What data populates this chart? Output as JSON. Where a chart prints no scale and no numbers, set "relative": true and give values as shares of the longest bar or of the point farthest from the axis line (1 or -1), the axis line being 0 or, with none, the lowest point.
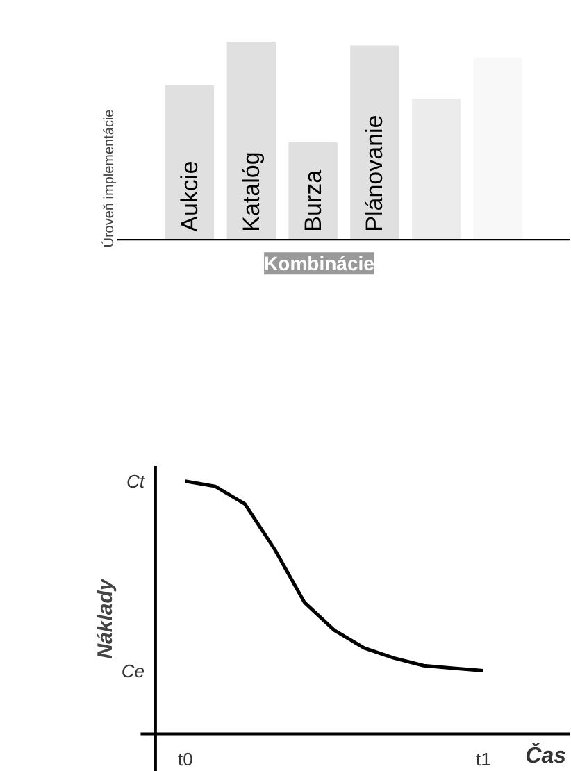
{
  "chart_data": [
    {
      "type": "bar",
      "relative": true,
      "ylabel": "Úroveň implementácie",
      "categories": [
        "Aukcie",
        "Katalóg",
        "Burza",
        "Plánovanie",
        null,
        null
      ],
      "values": [
        0.78,
        1,
        0.49,
        0.98,
        0.71,
        0.92
      ],
      "colors": [
        "#e0e0e0",
        "#e0e0e0",
        "#e0e0e0",
        "#e0e0e0",
        "#ececec",
        "#f8f8f8"
      ],
      "annotations": [
        "Kombinácie"
      ]
    },
    {
      "type": "line",
      "relative": true,
      "xlabel": "Čas",
      "ylabel": "Náklady",
      "categories": [
        null,
        null,
        null,
        null,
        null,
        null,
        null,
        null,
        null,
        null,
        null
      ],
      "values": [
        1,
        0.98,
        0.91,
        0.73,
        0.52,
        0.41,
        0.34,
        0.3,
        0.27,
        0.26,
        0.25
      ],
      "color": "#000000",
      "annotations": [
        "Ct",
        "Ce",
        "t0",
        "t1"
      ]
    }
  ]
}
